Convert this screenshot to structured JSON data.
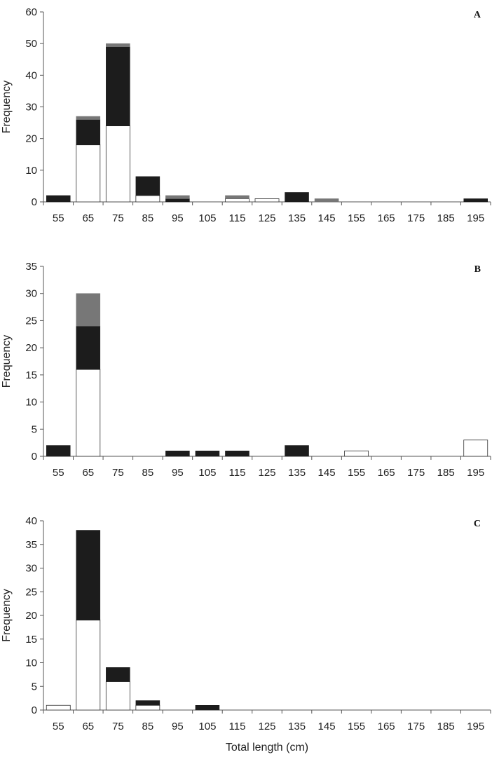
{
  "chart_data": [
    {
      "type": "bar",
      "stacked": true,
      "panel_label": "A",
      "ylabel": "Frequency",
      "ylim": [
        0,
        60
      ],
      "yticks": [
        0,
        10,
        20,
        30,
        40,
        50,
        60
      ],
      "categories": [
        "55",
        "65",
        "75",
        "85",
        "95",
        "105",
        "115",
        "125",
        "135",
        "145",
        "155",
        "165",
        "175",
        "185",
        "195"
      ],
      "series": [
        {
          "color": "#ffffff",
          "values": [
            0,
            18,
            24,
            2,
            0,
            0,
            1,
            1,
            0,
            0,
            0,
            0,
            0,
            0,
            0
          ]
        },
        {
          "color": "#1c1c1c",
          "values": [
            2,
            8,
            25,
            6,
            1,
            0,
            0,
            0,
            3,
            0,
            0,
            0,
            0,
            0,
            1
          ]
        },
        {
          "color": "#777777",
          "values": [
            0,
            1,
            1,
            0,
            1,
            0,
            1,
            0,
            0,
            1,
            0,
            0,
            0,
            0,
            0
          ]
        }
      ]
    },
    {
      "type": "bar",
      "stacked": true,
      "panel_label": "B",
      "ylabel": "Frequency",
      "ylim": [
        0,
        35
      ],
      "yticks": [
        0,
        5,
        10,
        15,
        20,
        25,
        30,
        35
      ],
      "categories": [
        "55",
        "65",
        "75",
        "85",
        "95",
        "105",
        "115",
        "125",
        "135",
        "145",
        "155",
        "165",
        "175",
        "185",
        "195"
      ],
      "series": [
        {
          "color": "#ffffff",
          "values": [
            0,
            16,
            0,
            0,
            0,
            0,
            0,
            0,
            0,
            0,
            1,
            0,
            0,
            0,
            3
          ]
        },
        {
          "color": "#1c1c1c",
          "values": [
            2,
            8,
            0,
            0,
            1,
            1,
            1,
            0,
            2,
            0,
            0,
            0,
            0,
            0,
            0
          ]
        },
        {
          "color": "#777777",
          "values": [
            0,
            6,
            0,
            0,
            0,
            0,
            0,
            0,
            0,
            0,
            0,
            0,
            0,
            0,
            0
          ]
        }
      ]
    },
    {
      "type": "bar",
      "stacked": true,
      "panel_label": "C",
      "ylabel": "Frequency",
      "xlabel": "Total length (cm)",
      "ylim": [
        0,
        40
      ],
      "yticks": [
        0,
        5,
        10,
        15,
        20,
        25,
        30,
        35,
        40
      ],
      "categories": [
        "55",
        "65",
        "75",
        "85",
        "95",
        "105",
        "115",
        "125",
        "135",
        "145",
        "155",
        "165",
        "175",
        "185",
        "195"
      ],
      "series": [
        {
          "color": "#ffffff",
          "values": [
            1,
            19,
            6,
            1,
            0,
            0,
            0,
            0,
            0,
            0,
            0,
            0,
            0,
            0,
            0
          ]
        },
        {
          "color": "#1c1c1c",
          "values": [
            0,
            19,
            3,
            1,
            0,
            1,
            0,
            0,
            0,
            0,
            0,
            0,
            0,
            0,
            0
          ]
        },
        {
          "color": "#777777",
          "values": [
            0,
            0,
            0,
            0,
            0,
            0,
            0,
            0,
            0,
            0,
            0,
            0,
            0,
            0,
            0
          ]
        }
      ]
    }
  ]
}
